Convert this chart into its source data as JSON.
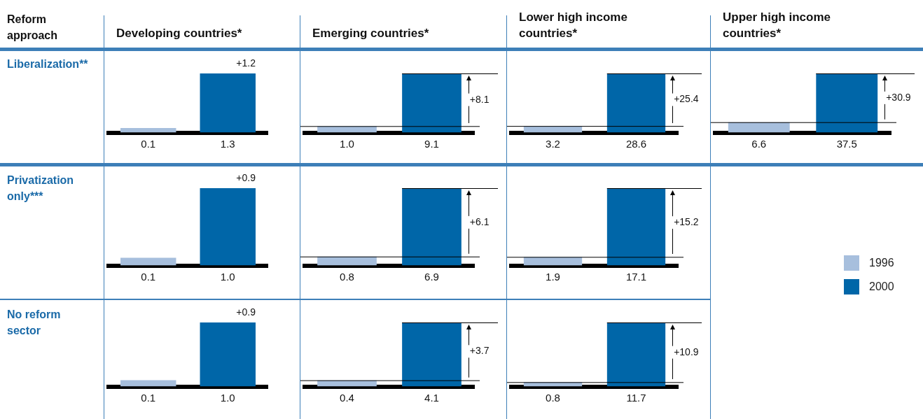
{
  "chart_data": [
    {
      "type": "bar",
      "title": "Developing countries*",
      "ylabel": "Liberalization**",
      "annotations": [
        "Reform approach",
        "+1.2"
      ],
      "categories": [
        null,
        null
      ],
      "values": [
        0.1,
        1.3
      ],
      "value_labels": [
        "0.1",
        "1.3"
      ],
      "colors": [
        "#a7bfdd",
        "#0066a8"
      ]
    },
    {
      "type": "bar",
      "title": "Emerging countries*",
      "annotations": [
        "+8.1"
      ],
      "ref_lines": [
        {
          "axis": "y",
          "value": 1.0
        },
        {
          "axis": "y",
          "value": 9.1
        }
      ],
      "categories": [
        null,
        null
      ],
      "values": [
        1.0,
        9.1
      ],
      "value_labels": [
        "1.0",
        "9.1"
      ],
      "colors": [
        "#a7bfdd",
        "#0066a8"
      ]
    },
    {
      "type": "bar",
      "title": "Lower high income countries*",
      "annotations": [
        "+25.4"
      ],
      "ref_lines": [
        {
          "axis": "y",
          "value": 3.2
        },
        {
          "axis": "y",
          "value": 28.6
        }
      ],
      "categories": [
        null,
        null
      ],
      "values": [
        3.2,
        28.6
      ],
      "value_labels": [
        "3.2",
        "28.6"
      ],
      "colors": [
        "#a7bfdd",
        "#0066a8"
      ]
    },
    {
      "type": "bar",
      "title": "Upper high income countries*",
      "annotations": [
        "+30.9"
      ],
      "ref_lines": [
        {
          "axis": "y",
          "value": 6.6
        },
        {
          "axis": "y",
          "value": 37.5
        }
      ],
      "categories": [
        null,
        null
      ],
      "values": [
        6.6,
        37.5
      ],
      "value_labels": [
        "6.6",
        "37.5"
      ],
      "colors": [
        "#a7bfdd",
        "#0066a8"
      ]
    },
    {
      "type": "bar",
      "ylabel": "Privatization only***",
      "annotations": [
        "+0.9"
      ],
      "categories": [
        null,
        null
      ],
      "values": [
        0.1,
        1.0
      ],
      "value_labels": [
        "0.1",
        "1.0"
      ],
      "colors": [
        "#a7bfdd",
        "#0066a8"
      ]
    },
    {
      "type": "bar",
      "annotations": [
        "+6.1"
      ],
      "ref_lines": [
        {
          "axis": "y",
          "value": 0.8
        },
        {
          "axis": "y",
          "value": 6.9
        }
      ],
      "categories": [
        null,
        null
      ],
      "values": [
        0.8,
        6.9
      ],
      "value_labels": [
        "0.8",
        "6.9"
      ],
      "colors": [
        "#a7bfdd",
        "#0066a8"
      ]
    },
    {
      "type": "bar",
      "annotations": [
        "+15.2"
      ],
      "ref_lines": [
        {
          "axis": "y",
          "value": 1.9
        },
        {
          "axis": "y",
          "value": 17.1
        }
      ],
      "categories": [
        null,
        null
      ],
      "values": [
        1.9,
        17.1
      ],
      "value_labels": [
        "1.9",
        "17.1"
      ],
      "colors": [
        "#a7bfdd",
        "#0066a8"
      ]
    },
    {
      "type": "bar",
      "ylabel": "No reform sector",
      "annotations": [
        "+0.9"
      ],
      "categories": [
        null,
        null
      ],
      "values": [
        0.1,
        1.0
      ],
      "value_labels": [
        "0.1",
        "1.0"
      ],
      "colors": [
        "#a7bfdd",
        "#0066a8"
      ]
    },
    {
      "type": "bar",
      "annotations": [
        "+3.7"
      ],
      "ref_lines": [
        {
          "axis": "y",
          "value": 0.4
        },
        {
          "axis": "y",
          "value": 4.1
        }
      ],
      "categories": [
        null,
        null
      ],
      "values": [
        0.4,
        4.1
      ],
      "value_labels": [
        "0.4",
        "4.1"
      ],
      "colors": [
        "#a7bfdd",
        "#0066a8"
      ]
    },
    {
      "type": "bar",
      "annotations": [
        "+10.9"
      ],
      "ref_lines": [
        {
          "axis": "y",
          "value": 0.8
        },
        {
          "axis": "y",
          "value": 11.7
        }
      ],
      "categories": [
        null,
        null
      ],
      "values": [
        0.8,
        11.7
      ],
      "value_labels": [
        "0.8",
        "11.7"
      ],
      "colors": [
        "#a7bfdd",
        "#0066a8"
      ]
    },
    {
      "type": "other",
      "categories": [
        "1996",
        "2000"
      ],
      "colors": [
        "#a7bfdd",
        "#0066a8"
      ]
    }
  ]
}
